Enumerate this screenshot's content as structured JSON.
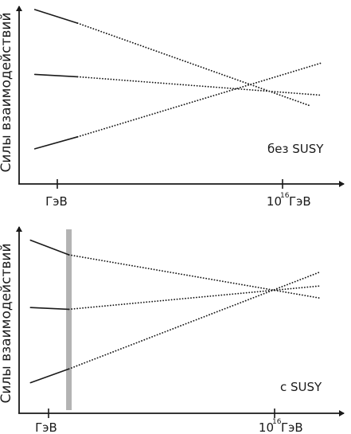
{
  "chart_data": [
    {
      "type": "line",
      "title": "",
      "ylabel": "Силы взаимодействий",
      "annotation": "без SUSY",
      "x_ticks": [
        {
          "x": 0,
          "label": "ГэВ"
        },
        {
          "x": 1,
          "base": "10",
          "exp": "16",
          "unit": "ГэВ"
        }
      ],
      "xlim": [
        -0.1,
        1.17
      ],
      "ylim": [
        0,
        1
      ],
      "series": [
        {
          "style": "solid",
          "x": [
            -0.1,
            0.09
          ],
          "y": [
            1.0,
            0.915
          ]
        },
        {
          "style": "dotted",
          "x": [
            0.09,
            1.12
          ],
          "y": [
            0.915,
            0.4
          ]
        },
        {
          "style": "solid",
          "x": [
            -0.1,
            0.09
          ],
          "y": [
            0.595,
            0.58
          ]
        },
        {
          "style": "dotted",
          "x": [
            0.09,
            1.17
          ],
          "y": [
            0.58,
            0.465
          ]
        },
        {
          "style": "solid",
          "x": [
            -0.1,
            0.09
          ],
          "y": [
            0.13,
            0.205
          ]
        },
        {
          "style": "dotted",
          "x": [
            0.09,
            1.17
          ],
          "y": [
            0.205,
            0.665
          ]
        }
      ]
    },
    {
      "type": "line",
      "title": "",
      "ylabel": "Силы взаимодействий",
      "annotation": "с SUSY",
      "x_ticks": [
        {
          "x": 0,
          "label": "ГэВ"
        },
        {
          "x": 1,
          "base": "10",
          "exp": "16",
          "unit": "ГэВ"
        }
      ],
      "xlim": [
        -0.08,
        1.2
      ],
      "ylim": [
        0,
        1
      ],
      "highlight_x": 0.09,
      "highlight_color": "#b3b3b3",
      "series": [
        {
          "style": "solid",
          "x": [
            -0.08,
            0.09
          ],
          "y": [
            0.965,
            0.88
          ]
        },
        {
          "style": "dotted",
          "x": [
            0.09,
            1.2
          ],
          "y": [
            0.88,
            0.63
          ]
        },
        {
          "style": "solid",
          "x": [
            -0.08,
            0.09
          ],
          "y": [
            0.575,
            0.565
          ]
        },
        {
          "style": "dotted",
          "x": [
            0.09,
            1.2
          ],
          "y": [
            0.565,
            0.7
          ]
        },
        {
          "style": "solid",
          "x": [
            -0.08,
            0.09
          ],
          "y": [
            0.14,
            0.22
          ]
        },
        {
          "style": "dotted",
          "x": [
            0.09,
            1.2
          ],
          "y": [
            0.22,
            0.78
          ]
        }
      ]
    }
  ]
}
